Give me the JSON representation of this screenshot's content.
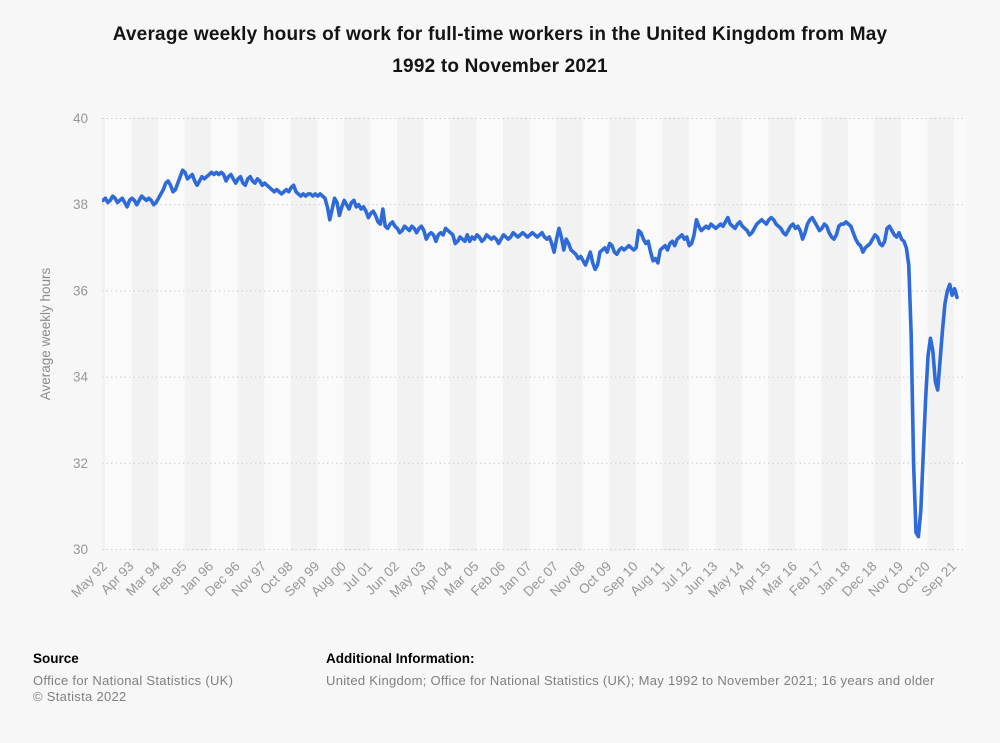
{
  "page": {
    "background": "#f7f7f7"
  },
  "title_lines": [
    "Average weekly hours of work for full-time workers in the United Kingdom from May",
    "1992 to November 2021"
  ],
  "footer": {
    "source_label": "Source",
    "source_lines": [
      "Office for National Statistics (UK)",
      "© Statista 2022"
    ],
    "additional_label": "Additional Information:",
    "additional_text": "United Kingdom; Office for National Statistics (UK); May 1992 to November 2021; 16 years and older"
  },
  "chart_data": {
    "type": "line",
    "title": "Average weekly hours of work for full-time workers in the United Kingdom from May 1992 to November 2021",
    "xlabel": "",
    "ylabel": "Average weekly hours",
    "ylim": [
      30,
      40
    ],
    "yticks": [
      40,
      38,
      36,
      34,
      32,
      30
    ],
    "grid": "dotted-horizontal",
    "gridline_color": "#cccccc",
    "axis_label_color": "#979797",
    "plot_band_colors": [
      "#f2f2f2",
      "#fafafa"
    ],
    "x_start": "May 1992",
    "x_end": "November 2021",
    "x_tick_interval_months": 11,
    "x_tick_labels": [
      "May 92",
      "Apr 93",
      "Mar 94",
      "Feb 95",
      "Jan 96",
      "Dec 96",
      "Nov 97",
      "Oct 98",
      "Sep 99",
      "Aug 00",
      "Jul 01",
      "Jun 02",
      "May 03",
      "Apr 04",
      "Mar 05",
      "Feb 06",
      "Jan 07",
      "Dec 07",
      "Nov 08",
      "Oct 09",
      "Sep 10",
      "Aug 11",
      "Jul 12",
      "Jun 13",
      "May 14",
      "Apr 15",
      "Mar 16",
      "Feb 17",
      "Jan 18",
      "Dec 18",
      "Nov 19",
      "Oct 20",
      "Sep 21"
    ],
    "series": [
      {
        "name": "Average weekly hours",
        "color": "#2e6bd8",
        "monthly_values": [
          38.1,
          38.15,
          38.05,
          38.1,
          38.2,
          38.15,
          38.05,
          38.1,
          38.15,
          38.05,
          37.95,
          38.1,
          38.15,
          38.1,
          38.0,
          38.1,
          38.2,
          38.15,
          38.1,
          38.15,
          38.1,
          38.0,
          38.05,
          38.15,
          38.25,
          38.35,
          38.5,
          38.55,
          38.45,
          38.3,
          38.35,
          38.5,
          38.65,
          38.8,
          38.75,
          38.6,
          38.65,
          38.7,
          38.55,
          38.45,
          38.55,
          38.65,
          38.6,
          38.65,
          38.7,
          38.75,
          38.7,
          38.75,
          38.7,
          38.75,
          38.7,
          38.55,
          38.65,
          38.7,
          38.6,
          38.5,
          38.6,
          38.65,
          38.5,
          38.45,
          38.6,
          38.65,
          38.55,
          38.5,
          38.6,
          38.55,
          38.45,
          38.5,
          38.45,
          38.4,
          38.35,
          38.3,
          38.35,
          38.3,
          38.25,
          38.3,
          38.35,
          38.3,
          38.4,
          38.45,
          38.3,
          38.25,
          38.2,
          38.25,
          38.2,
          38.25,
          38.25,
          38.2,
          38.25,
          38.2,
          38.25,
          38.2,
          38.15,
          37.95,
          37.65,
          37.9,
          38.15,
          38.05,
          37.75,
          37.95,
          38.1,
          38.0,
          37.9,
          38.05,
          38.1,
          37.95,
          38.0,
          37.9,
          37.95,
          37.85,
          37.7,
          37.8,
          37.85,
          37.75,
          37.6,
          37.55,
          37.9,
          37.5,
          37.45,
          37.55,
          37.6,
          37.5,
          37.45,
          37.35,
          37.4,
          37.5,
          37.45,
          37.4,
          37.5,
          37.45,
          37.35,
          37.45,
          37.5,
          37.4,
          37.2,
          37.3,
          37.35,
          37.3,
          37.15,
          37.3,
          37.35,
          37.3,
          37.45,
          37.4,
          37.35,
          37.3,
          37.1,
          37.15,
          37.25,
          37.2,
          37.15,
          37.3,
          37.15,
          37.25,
          37.2,
          37.3,
          37.25,
          37.15,
          37.2,
          37.3,
          37.25,
          37.2,
          37.25,
          37.2,
          37.1,
          37.2,
          37.3,
          37.25,
          37.2,
          37.25,
          37.35,
          37.3,
          37.25,
          37.3,
          37.35,
          37.3,
          37.25,
          37.3,
          37.35,
          37.3,
          37.25,
          37.3,
          37.35,
          37.25,
          37.2,
          37.25,
          37.1,
          36.9,
          37.2,
          37.45,
          37.25,
          36.95,
          37.2,
          37.1,
          36.95,
          36.9,
          36.85,
          36.75,
          36.8,
          36.7,
          36.6,
          36.75,
          36.9,
          36.65,
          36.5,
          36.6,
          36.9,
          36.95,
          37.0,
          36.9,
          37.1,
          37.05,
          36.9,
          36.85,
          36.95,
          37.0,
          36.95,
          37.0,
          37.05,
          37.0,
          36.95,
          37.0,
          37.4,
          37.35,
          37.2,
          37.1,
          37.15,
          36.9,
          36.7,
          36.75,
          36.65,
          36.95,
          37.0,
          37.05,
          36.95,
          37.1,
          37.15,
          37.05,
          37.2,
          37.25,
          37.3,
          37.2,
          37.25,
          37.05,
          37.1,
          37.3,
          37.65,
          37.5,
          37.4,
          37.45,
          37.5,
          37.45,
          37.55,
          37.5,
          37.45,
          37.5,
          37.55,
          37.5,
          37.6,
          37.7,
          37.55,
          37.5,
          37.45,
          37.55,
          37.6,
          37.5,
          37.45,
          37.4,
          37.3,
          37.35,
          37.45,
          37.55,
          37.6,
          37.65,
          37.6,
          37.55,
          37.65,
          37.7,
          37.65,
          37.55,
          37.5,
          37.45,
          37.35,
          37.3,
          37.4,
          37.5,
          37.55,
          37.45,
          37.5,
          37.4,
          37.2,
          37.35,
          37.55,
          37.65,
          37.7,
          37.6,
          37.5,
          37.4,
          37.45,
          37.55,
          37.5,
          37.35,
          37.25,
          37.2,
          37.3,
          37.5,
          37.55,
          37.55,
          37.6,
          37.55,
          37.5,
          37.35,
          37.2,
          37.1,
          37.05,
          36.9,
          37.0,
          37.05,
          37.1,
          37.2,
          37.3,
          37.25,
          37.1,
          37.05,
          37.15,
          37.45,
          37.5,
          37.4,
          37.3,
          37.25,
          37.35,
          37.2,
          37.15,
          37.0,
          36.6,
          35.0,
          32.0,
          30.4,
          30.3,
          30.9,
          32.2,
          33.5,
          34.5,
          34.9,
          34.6,
          33.9,
          33.7,
          34.4,
          35.1,
          35.7,
          36.0,
          36.15,
          35.9,
          36.05,
          35.85
        ]
      }
    ]
  }
}
